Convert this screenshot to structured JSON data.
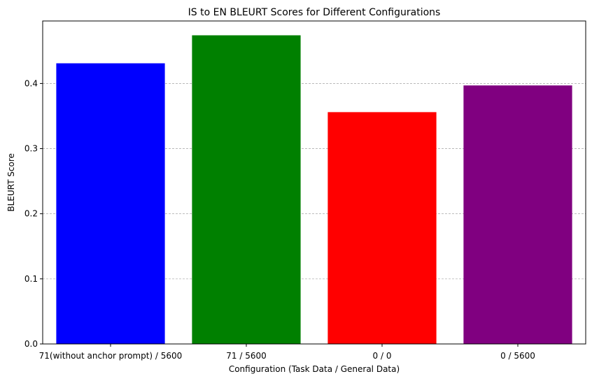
{
  "chart_data": {
    "type": "bar",
    "title": "IS to EN BLEURT Scores for Different Configurations",
    "xlabel": "Configuration (Task Data / General Data)",
    "ylabel": "BLEURT Score",
    "categories": [
      "71(without anchor prompt) / 5600",
      "71 / 5600",
      "0 / 0",
      "0 / 5600"
    ],
    "values": [
      0.431,
      0.474,
      0.356,
      0.397
    ],
    "colors": [
      "#0000ff",
      "#008000",
      "#ff0000",
      "#800080"
    ],
    "ylim": [
      0,
      0.496
    ],
    "yticks": [
      0.0,
      0.1,
      0.2,
      0.3,
      0.4
    ],
    "ytick_labels": [
      "0.0",
      "0.1",
      "0.2",
      "0.3",
      "0.4"
    ],
    "grid": "y-dashed",
    "legend": "none"
  }
}
